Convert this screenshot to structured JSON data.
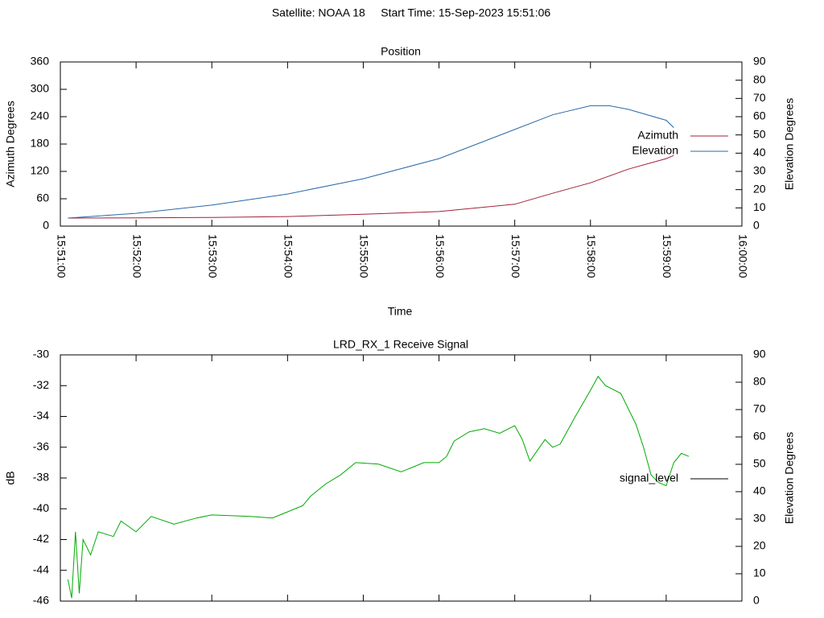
{
  "chart_data": [
    {
      "type": "line",
      "suptitle": "Satellite: NOAA 18     Start Time: 15-Sep-2023 15:51:06",
      "title": "Position",
      "xlabel": "Time",
      "ylabel": "Azimuth Degrees",
      "y2label": "Elevation Degrees",
      "xlim": [
        "15:51:00",
        "16:00:00"
      ],
      "xticks": [
        "15:51:00",
        "15:52:00",
        "15:53:00",
        "15:54:00",
        "15:55:00",
        "15:56:00",
        "15:57:00",
        "15:58:00",
        "15:59:00",
        "16:00:00"
      ],
      "ylim": [
        0,
        360
      ],
      "yticks": [
        0,
        60,
        120,
        180,
        240,
        300,
        360
      ],
      "y2lim": [
        0,
        90
      ],
      "y2ticks": [
        0,
        10,
        20,
        30,
        40,
        50,
        60,
        70,
        80,
        90
      ],
      "x": [
        "15:51:06",
        "15:52:00",
        "15:53:00",
        "15:54:00",
        "15:55:00",
        "15:56:00",
        "15:57:00",
        "15:57:30",
        "15:58:00",
        "15:58:15",
        "15:58:30",
        "15:59:00",
        "15:59:06"
      ],
      "series": [
        {
          "name": "Azimuth",
          "color": "#a0203a",
          "values": [
            17.6,
            18,
            19,
            21,
            26,
            32,
            48,
            72,
            95,
            110,
            125,
            148,
            155
          ]
        },
        {
          "name": "Elevation",
          "color": "#2a68a8",
          "axis": "y2",
          "values": [
            4.4,
            7,
            11.5,
            17.6,
            26,
            37,
            53,
            61,
            66,
            66,
            64,
            58,
            54
          ]
        }
      ]
    },
    {
      "type": "line",
      "title": "LRD_RX_1 Receive Signal",
      "ylabel": "dB",
      "y2label": "Elevation Degrees",
      "ylim": [
        -46,
        -30
      ],
      "yticks": [
        -46,
        -44,
        -42,
        -40,
        -38,
        -36,
        -34,
        -32,
        -30
      ],
      "y2lim": [
        0,
        90
      ],
      "y2ticks": [
        0,
        10,
        20,
        30,
        40,
        50,
        60,
        70,
        80,
        90
      ],
      "x": [
        "15:51:06",
        "15:51:09",
        "15:51:12",
        "15:51:15",
        "15:51:18",
        "15:51:24",
        "15:51:30",
        "15:51:42",
        "15:51:48",
        "15:52:00",
        "15:52:12",
        "15:52:30",
        "15:52:48",
        "15:53:00",
        "15:53:30",
        "15:53:48",
        "15:54:00",
        "15:54:12",
        "15:54:18",
        "15:54:30",
        "15:54:42",
        "15:54:54",
        "15:55:12",
        "15:55:30",
        "15:55:48",
        "15:56:00",
        "15:56:06",
        "15:56:12",
        "15:56:24",
        "15:56:36",
        "15:56:48",
        "15:57:00",
        "15:57:06",
        "15:57:12",
        "15:57:24",
        "15:57:30",
        "15:57:36",
        "15:57:48",
        "15:58:00",
        "15:58:06",
        "15:58:12",
        "15:58:24",
        "15:58:36",
        "15:58:42",
        "15:58:48",
        "15:58:54",
        "15:59:00",
        "15:59:06",
        "15:59:12",
        "15:59:18"
      ],
      "series": [
        {
          "name": "signal_level",
          "color": "#00aa00",
          "legend_color": "#000000",
          "values": [
            -44.6,
            -45.8,
            -41.5,
            -45.5,
            -42.0,
            -43.0,
            -41.5,
            -41.8,
            -40.8,
            -41.5,
            -40.5,
            -41.0,
            -40.6,
            -40.4,
            -40.5,
            -40.6,
            -40.2,
            -39.8,
            -39.2,
            -38.4,
            -37.8,
            -37.0,
            -37.1,
            -37.6,
            -37.0,
            -37.0,
            -36.6,
            -35.6,
            -35.0,
            -34.8,
            -35.1,
            -34.6,
            -35.5,
            -36.9,
            -35.5,
            -36.0,
            -35.8,
            -34.0,
            -32.3,
            -31.4,
            -32.0,
            -32.5,
            -34.5,
            -36.0,
            -37.8,
            -38.3,
            -38.5,
            -37.0,
            -36.4,
            -36.6
          ]
        }
      ]
    }
  ]
}
